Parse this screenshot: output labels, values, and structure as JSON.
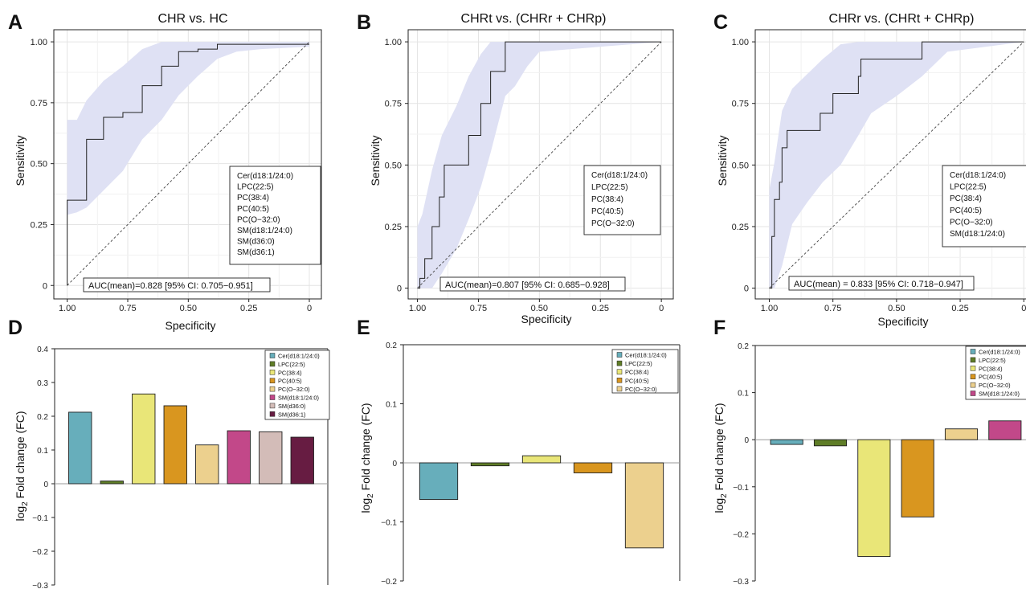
{
  "colors": {
    "ci_band": "#dfe1f4",
    "roc_line": "#222222",
    "grid": "#e4e4e4",
    "cer_d18_1_24_0": "#67aebb",
    "lpc_22_5": "#5f7d27",
    "pc_38_4": "#e9e678",
    "pc_40_5": "#d9961f",
    "pc_o_32_0": "#ecd08e",
    "sm_d18_1_24_0": "#c24889",
    "sm_d36_0": "#d3bcb8",
    "sm_d36_1": "#671c42"
  },
  "chart_data": [
    {
      "panel_letter": "A",
      "type": "line",
      "title": "CHR vs. HC",
      "xlabel": "Specificity",
      "ylabel": "Sensitivity",
      "x_reversed": true,
      "xlim": [
        1,
        0
      ],
      "ylim": [
        0,
        1
      ],
      "xticks": [
        "1.00",
        "0.75",
        "0.50",
        "0.25",
        "0"
      ],
      "yticks": [
        "0",
        "0.25",
        "0.50",
        "0.75",
        "1.00"
      ],
      "grid": true,
      "legend_position": "right",
      "legend": [
        "Cer(d18:1/24:0)",
        "LPC(22:5)",
        "PC(38:4)",
        "PC(40:5)",
        "PC(O−32:0)",
        "SM(d18:1/24:0)",
        "SM(d36:0)",
        "SM(d36:1)"
      ],
      "annotation": "AUC(mean)=0.828 [95% CI: 0.705−0.951]",
      "roc_curve": {
        "specificity": [
          1.0,
          1.0,
          0.92,
          0.92,
          0.85,
          0.85,
          0.77,
          0.77,
          0.69,
          0.69,
          0.61,
          0.61,
          0.54,
          0.54,
          0.46,
          0.46,
          0.38,
          0.38,
          0.0
        ],
        "sensitivity": [
          0.0,
          0.35,
          0.35,
          0.6,
          0.6,
          0.69,
          0.69,
          0.71,
          0.71,
          0.82,
          0.82,
          0.9,
          0.9,
          0.96,
          0.96,
          0.97,
          0.97,
          0.99,
          0.99
        ]
      },
      "ci_band": {
        "specificity": [
          1.0,
          0.96,
          0.92,
          0.85,
          0.77,
          0.69,
          0.61,
          0.54,
          0.46,
          0.38,
          0.3,
          0.2,
          0.0
        ],
        "lower": [
          0.29,
          0.3,
          0.32,
          0.39,
          0.47,
          0.6,
          0.68,
          0.78,
          0.86,
          0.93,
          0.96,
          0.97,
          0.98
        ],
        "upper": [
          0.68,
          0.68,
          0.76,
          0.84,
          0.9,
          0.97,
          1.0,
          1.0,
          1.0,
          1.0,
          1.0,
          1.0,
          1.0
        ]
      }
    },
    {
      "panel_letter": "B",
      "type": "line",
      "title": "CHRt vs. (CHRr + CHRp)",
      "xlabel": "Specificity",
      "ylabel": "Sensitivity",
      "x_reversed": true,
      "xlim": [
        1,
        0
      ],
      "ylim": [
        0,
        1
      ],
      "xticks": [
        "1.00",
        "0.75",
        "0.50",
        "0.25",
        "0"
      ],
      "yticks": [
        "0",
        "0.25",
        "0.50",
        "0.75",
        "1.00"
      ],
      "grid": true,
      "legend_position": "right",
      "legend": [
        "Cer(d18:1/24:0)",
        "LPC(22:5)",
        "PC(38:4)",
        "PC(40:5)",
        "PC(O−32:0)"
      ],
      "annotation": "AUC(mean)=0.807 [95% CI: 0.685−0.928]",
      "roc_curve": {
        "specificity": [
          1.0,
          0.99,
          0.99,
          0.97,
          0.97,
          0.94,
          0.94,
          0.91,
          0.91,
          0.89,
          0.89,
          0.79,
          0.79,
          0.74,
          0.74,
          0.7,
          0.7,
          0.64,
          0.64,
          0.0
        ],
        "sensitivity": [
          0.0,
          0.0,
          0.04,
          0.04,
          0.12,
          0.12,
          0.25,
          0.25,
          0.37,
          0.37,
          0.5,
          0.5,
          0.62,
          0.62,
          0.75,
          0.75,
          0.88,
          0.88,
          1.0,
          1.0
        ]
      },
      "ci_band": {
        "specificity": [
          1.0,
          0.98,
          0.94,
          0.9,
          0.84,
          0.79,
          0.74,
          0.7,
          0.64,
          0.6,
          0.55,
          0.5,
          0.0
        ],
        "lower": [
          0.0,
          0.0,
          0.0,
          0.06,
          0.16,
          0.28,
          0.41,
          0.55,
          0.78,
          0.82,
          0.9,
          0.96,
          1.0
        ],
        "upper": [
          0.25,
          0.3,
          0.48,
          0.62,
          0.74,
          0.86,
          0.95,
          1.0,
          1.0,
          1.0,
          1.0,
          1.0,
          1.0
        ]
      }
    },
    {
      "panel_letter": "C",
      "type": "line",
      "title": "CHRr vs. (CHRt + CHRp)",
      "xlabel": "Specificity",
      "ylabel": "Sensitivity",
      "x_reversed": true,
      "xlim": [
        1,
        0
      ],
      "ylim": [
        0,
        1
      ],
      "xticks": [
        "1.00",
        "0.75",
        "0.50",
        "0.25",
        "0"
      ],
      "yticks": [
        "0",
        "0.25",
        "0.50",
        "0.75",
        "1.00"
      ],
      "grid": true,
      "legend_position": "right",
      "legend": [
        "Cer(d18:1/24:0)",
        "LPC(22:5)",
        "PC(38:4)",
        "PC(40:5)",
        "PC(O−32:0)",
        "SM(d18:1/24:0)"
      ],
      "annotation": "AUC(mean) = 0.833 [95% CI: 0.718−0.947]",
      "roc_curve": {
        "specificity": [
          1.0,
          0.99,
          0.99,
          0.98,
          0.98,
          0.96,
          0.96,
          0.95,
          0.95,
          0.93,
          0.93,
          0.89,
          0.89,
          0.8,
          0.8,
          0.75,
          0.75,
          0.65,
          0.65,
          0.64,
          0.64,
          0.61,
          0.61,
          0.4,
          0.4,
          0.0
        ],
        "sensitivity": [
          0.0,
          0.0,
          0.21,
          0.21,
          0.36,
          0.36,
          0.43,
          0.43,
          0.57,
          0.57,
          0.64,
          0.64,
          0.64,
          0.64,
          0.71,
          0.71,
          0.79,
          0.79,
          0.86,
          0.86,
          0.93,
          0.93,
          0.93,
          0.93,
          1.0,
          1.0
        ]
      },
      "ci_band": {
        "specificity": [
          1.0,
          0.98,
          0.95,
          0.91,
          0.85,
          0.79,
          0.72,
          0.65,
          0.6,
          0.5,
          0.4,
          0.3,
          0.0
        ],
        "lower": [
          0.0,
          0.0,
          0.09,
          0.26,
          0.35,
          0.43,
          0.5,
          0.62,
          0.71,
          0.78,
          0.86,
          0.96,
          1.0
        ],
        "upper": [
          0.4,
          0.51,
          0.72,
          0.81,
          0.87,
          0.93,
          0.99,
          1.0,
          1.0,
          1.0,
          1.0,
          1.0,
          1.0
        ]
      }
    },
    {
      "panel_letter": "D",
      "type": "bar",
      "ylabel_main": "log",
      "ylabel_sub": "2",
      "ylabel_rest": " Fold change (FC)",
      "ylim": [
        -0.3,
        0.4
      ],
      "yticks": [
        "0.4",
        "0.3",
        "0.2",
        "0.1",
        "0",
        "−0.1",
        "−0.2",
        "−0.3"
      ],
      "legend_position": "top-right",
      "categories": [
        "Cer(d18:1/24:0)",
        "LPC(22:5)",
        "PC(38:4)",
        "PC(40:5)",
        "PC(O−32:0)",
        "SM(d18:1/24:0)",
        "SM(d36:0)",
        "SM(d36:1)"
      ],
      "values": [
        0.212,
        0.008,
        0.266,
        0.231,
        0.115,
        0.157,
        0.154,
        0.138
      ]
    },
    {
      "panel_letter": "E",
      "type": "bar",
      "ylabel_main": "log",
      "ylabel_sub": "2",
      "ylabel_rest": " Fold change (FC)",
      "ylim": [
        -0.2,
        0.2
      ],
      "yticks": [
        "0.2",
        "0.1",
        "0",
        "−0.1",
        "−0.2"
      ],
      "legend_position": "top-right",
      "categories": [
        "Cer(d18:1/24:0)",
        "LPC(22:5)",
        "PC(38:4)",
        "PC(40:5)",
        "PC(O−32:0)"
      ],
      "values": [
        -0.062,
        -0.005,
        0.012,
        -0.017,
        -0.144
      ]
    },
    {
      "panel_letter": "F",
      "type": "bar",
      "ylabel_main": "log",
      "ylabel_sub": "2",
      "ylabel_rest": " Fold change (FC)",
      "ylim": [
        -0.3,
        0.2
      ],
      "yticks": [
        "0.2",
        "0.1",
        "0",
        "−0.1",
        "−0.2",
        "−0.3"
      ],
      "legend_position": "top-right",
      "categories": [
        "Cer(d18:1/24:0)",
        "LPC(22:5)",
        "PC(38:4)",
        "PC(40:5)",
        "PC(O−32:0)",
        "SM(d18:1/24:0)"
      ],
      "values": [
        -0.01,
        -0.013,
        -0.248,
        -0.164,
        0.023,
        0.04
      ]
    }
  ]
}
